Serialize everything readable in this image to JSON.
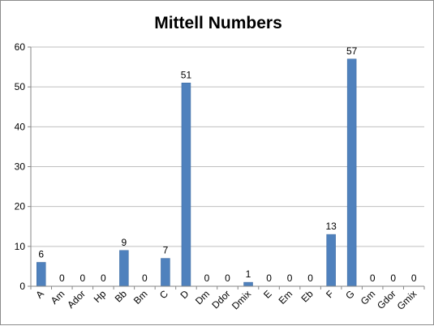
{
  "chart_data": {
    "type": "bar",
    "title": "Mittell Numbers",
    "xlabel": "",
    "ylabel": "",
    "ylim": [
      0,
      60
    ],
    "yticks": [
      0,
      10,
      20,
      30,
      40,
      50,
      60
    ],
    "categories": [
      "A",
      "Am",
      "Ador",
      "Hp",
      "Bb",
      "Bm",
      "C",
      "D",
      "Dm",
      "Ddor",
      "Dmix",
      "E",
      "Em",
      "Eb",
      "F",
      "G",
      "Gm",
      "Gdor",
      "Gmix"
    ],
    "values": [
      6,
      0,
      0,
      0,
      9,
      0,
      7,
      51,
      0,
      0,
      1,
      0,
      0,
      0,
      13,
      57,
      0,
      0,
      0
    ],
    "data_labels": true,
    "grid": true,
    "legend": "none",
    "bar_color": "#4f81bd",
    "grid_color": "#bfbfbf"
  }
}
